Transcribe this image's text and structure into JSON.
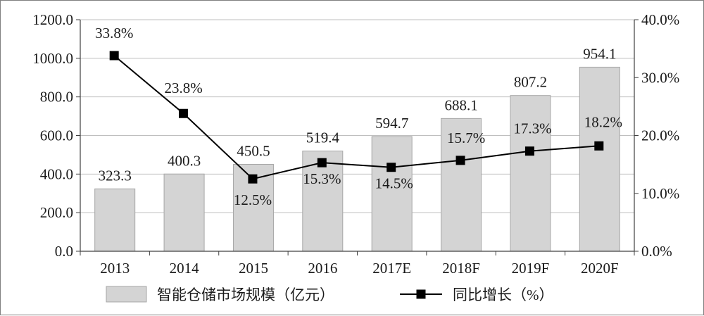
{
  "chart_data": {
    "type": "bar",
    "categories": [
      "2013",
      "2014",
      "2015",
      "2016",
      "2017E",
      "2018F",
      "2019F",
      "2020F"
    ],
    "series": [
      {
        "name": "智能仓储市场规模（亿元）",
        "kind": "bar",
        "axis": "left",
        "values": [
          323.3,
          400.3,
          450.5,
          519.4,
          594.7,
          688.1,
          807.2,
          954.1
        ],
        "labels": [
          "323.3",
          "400.3",
          "450.5",
          "519.4",
          "594.7",
          "688.1",
          "807.2",
          "954.1"
        ],
        "color": "#d4d4d4",
        "stroke": "#a6a6a6"
      },
      {
        "name": "同比增长（%）",
        "kind": "line",
        "axis": "right",
        "values": [
          33.8,
          23.8,
          12.5,
          15.3,
          14.5,
          15.7,
          17.3,
          18.2
        ],
        "labels": [
          "33.8%",
          "23.8%",
          "12.5%",
          "15.3%",
          "14.5%",
          "15.7%",
          "17.3%",
          "18.2%"
        ],
        "color": "#000000"
      }
    ],
    "y_left": {
      "ylim": [
        0,
        1200
      ],
      "ticks": [
        "0.0",
        "200.0",
        "400.0",
        "600.0",
        "800.0",
        "1000.0",
        "1200.0"
      ]
    },
    "y_right": {
      "ylim": [
        0,
        40
      ],
      "ticks": [
        "0.0%",
        "10.0%",
        "20.0%",
        "30.0%",
        "40.0%"
      ]
    },
    "grid": true,
    "legend": "bottom"
  }
}
